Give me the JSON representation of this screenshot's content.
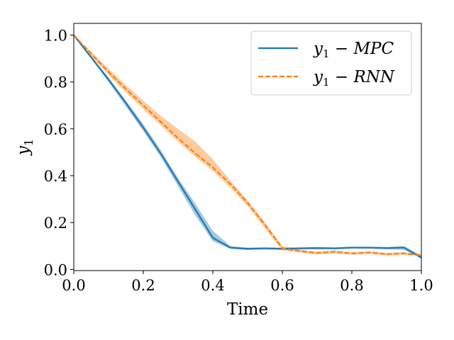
{
  "chart_data": {
    "type": "line",
    "title": "",
    "xlabel": "Time",
    "ylabel": "y1",
    "xlim": [
      0.0,
      1.0
    ],
    "ylim": [
      -0.005,
      1.05
    ],
    "x_ticks": [
      "0.0",
      "0.2",
      "0.4",
      "0.6",
      "0.8",
      "1.0"
    ],
    "y_ticks": [
      "0.0",
      "0.2",
      "0.4",
      "0.6",
      "0.8",
      "1.0"
    ],
    "grid": false,
    "legend_position": "top-right",
    "x": [
      0.0,
      0.05,
      0.1,
      0.15,
      0.2,
      0.25,
      0.3,
      0.35,
      0.4,
      0.45,
      0.5,
      0.55,
      0.6,
      0.65,
      0.7,
      0.75,
      0.8,
      0.85,
      0.9,
      0.95,
      1.0
    ],
    "series": [
      {
        "name": "y1 - MPC",
        "label_main": "y",
        "label_sub": "1",
        "label_rest": " − MPC",
        "color": "#1f77b4",
        "dash": "solid",
        "values": [
          1.0,
          0.905,
          0.81,
          0.71,
          0.605,
          0.495,
          0.375,
          0.255,
          0.135,
          0.093,
          0.088,
          0.09,
          0.088,
          0.09,
          0.091,
          0.09,
          0.093,
          0.093,
          0.091,
          0.093,
          0.05
        ],
        "band_low": [
          1.0,
          0.9,
          0.8,
          0.695,
          0.59,
          0.48,
          0.355,
          0.23,
          0.12,
          0.088,
          0.083,
          0.085,
          0.083,
          0.085,
          0.086,
          0.085,
          0.088,
          0.088,
          0.086,
          0.083,
          0.048
        ],
        "band_high": [
          1.0,
          0.91,
          0.82,
          0.72,
          0.62,
          0.51,
          0.39,
          0.28,
          0.165,
          0.1,
          0.093,
          0.094,
          0.093,
          0.094,
          0.096,
          0.094,
          0.097,
          0.097,
          0.096,
          0.1,
          0.058
        ]
      },
      {
        "name": "y1 - RNN",
        "label_main": "y",
        "label_sub": "1",
        "label_rest": " − RNN",
        "color": "#ff7f0e",
        "dash": "dashed",
        "values": [
          1.0,
          0.92,
          0.843,
          0.77,
          0.7,
          0.63,
          0.56,
          0.495,
          0.435,
          0.365,
          0.285,
          0.19,
          0.09,
          0.078,
          0.07,
          0.075,
          0.068,
          0.072,
          0.065,
          0.068,
          0.06
        ],
        "band_low": [
          1.0,
          0.91,
          0.83,
          0.755,
          0.685,
          0.615,
          0.545,
          0.48,
          0.42,
          0.35,
          0.27,
          0.175,
          0.082,
          0.072,
          0.065,
          0.07,
          0.063,
          0.067,
          0.06,
          0.063,
          0.057
        ],
        "band_high": [
          1.0,
          0.93,
          0.857,
          0.787,
          0.72,
          0.655,
          0.6,
          0.545,
          0.47,
          0.38,
          0.295,
          0.2,
          0.1,
          0.085,
          0.076,
          0.081,
          0.074,
          0.078,
          0.071,
          0.074,
          0.065
        ]
      }
    ]
  }
}
